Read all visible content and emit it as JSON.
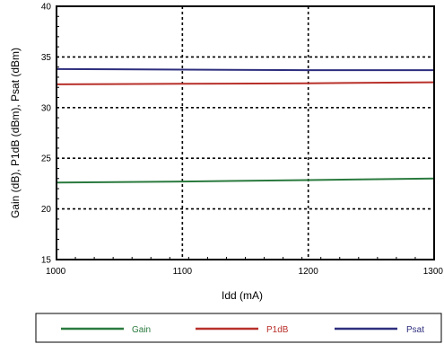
{
  "chart_data": {
    "type": "line",
    "xlabel": "Idd (mA)",
    "ylabel": "Gain (dB), P1dB (dBm), Psat (dBm)",
    "xlim": [
      1000,
      1300
    ],
    "ylim": [
      15,
      40
    ],
    "x_ticks": [
      "1000",
      "1100",
      "1200",
      "1300"
    ],
    "y_ticks": [
      "15",
      "20",
      "25",
      "30",
      "35",
      "40"
    ],
    "grid": true,
    "legend_position": "bottom",
    "series": [
      {
        "name": "Gain",
        "color": "#2a7a3e",
        "x": [
          1000,
          1100,
          1200,
          1300
        ],
        "y": [
          22.6,
          22.7,
          22.85,
          23.0
        ]
      },
      {
        "name": "P1dB",
        "color": "#b8302a",
        "x": [
          1000,
          1100,
          1200,
          1300
        ],
        "y": [
          32.3,
          32.35,
          32.4,
          32.5
        ]
      },
      {
        "name": "Psat",
        "color": "#2e2e7e",
        "x": [
          1000,
          1100,
          1200,
          1300
        ],
        "y": [
          33.8,
          33.75,
          33.7,
          33.7
        ]
      }
    ]
  }
}
